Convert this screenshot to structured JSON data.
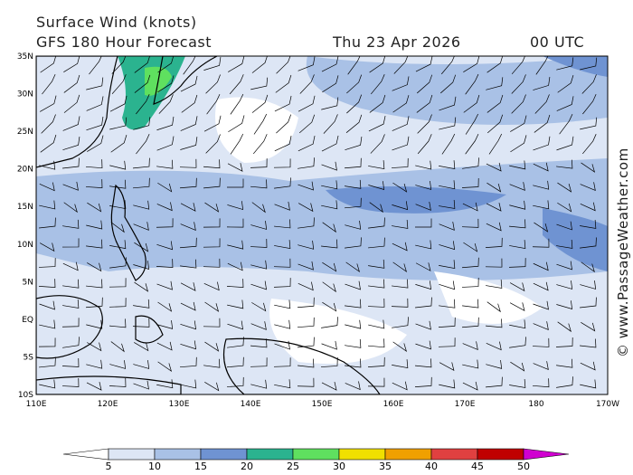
{
  "header": {
    "title": "Surface Wind (knots)",
    "subtitle": "GFS 180 Hour Forecast",
    "date": "Thu 23 Apr 2026",
    "time": "00 UTC"
  },
  "credit": "© www.PassageWeather.com",
  "lat_labels": [
    "35N",
    "30N",
    "25N",
    "20N",
    "15N",
    "10N",
    "5N",
    "EQ",
    "5S",
    "10S"
  ],
  "lon_labels": [
    "110E",
    "120E",
    "130E",
    "140E",
    "150E",
    "160E",
    "170E",
    "180",
    "170W"
  ],
  "colorbar": {
    "labels": [
      5,
      10,
      15,
      20,
      25,
      30,
      35,
      40,
      45,
      50
    ],
    "colors": [
      "#ffffff",
      "#dde6f5",
      "#a9c1e6",
      "#6f93d2",
      "#2bb38f",
      "#5fe05f",
      "#f0e000",
      "#f0a000",
      "#e04040",
      "#c00000",
      "#d000d0"
    ]
  }
}
